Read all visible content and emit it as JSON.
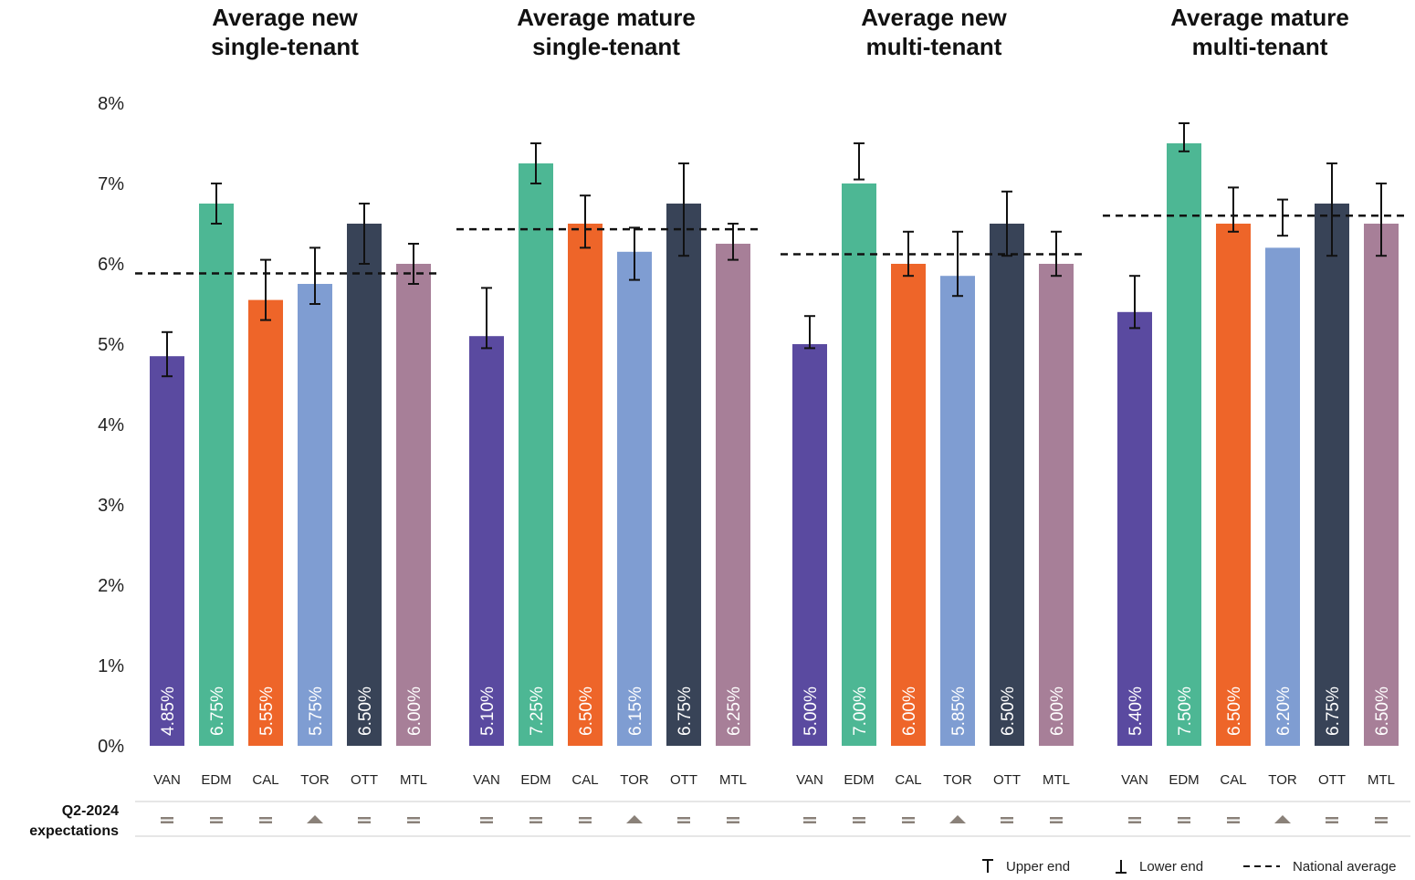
{
  "chart_data": {
    "type": "bar",
    "y_axis": {
      "ylim": [
        0,
        8
      ],
      "ticks": [
        0,
        1,
        2,
        3,
        4,
        5,
        6,
        7,
        8
      ],
      "tick_labels": [
        "0%",
        "1%",
        "2%",
        "3%",
        "4%",
        "5%",
        "6%",
        "7%",
        "8%"
      ]
    },
    "categories": [
      "VAN",
      "EDM",
      "CAL",
      "TOR",
      "OTT",
      "MTL"
    ],
    "category_colors": [
      "#5a4aa0",
      "#4db794",
      "#ee6529",
      "#7f9dd2",
      "#384357",
      "#a77f98"
    ],
    "legend_position": "bottom-right",
    "panels": [
      {
        "title": [
          "Average new",
          "single-tenant"
        ],
        "values": [
          4.85,
          6.75,
          5.55,
          5.75,
          6.5,
          6.0
        ],
        "value_labels": [
          "4.85%",
          "6.75%",
          "5.55%",
          "5.75%",
          "6.50%",
          "6.00%"
        ],
        "upper": [
          5.15,
          7.0,
          6.05,
          6.2,
          6.75,
          6.25
        ],
        "lower": [
          4.6,
          6.5,
          5.3,
          5.5,
          6.0,
          5.75
        ],
        "national_average": 5.88,
        "expectations": [
          "equal",
          "equal",
          "equal",
          "up",
          "equal",
          "equal"
        ]
      },
      {
        "title": [
          "Average mature",
          "single-tenant"
        ],
        "values": [
          5.1,
          7.25,
          6.5,
          6.15,
          6.75,
          6.25
        ],
        "value_labels": [
          "5.10%",
          "7.25%",
          "6.50%",
          "6.15%",
          "6.75%",
          "6.25%"
        ],
        "upper": [
          5.7,
          7.5,
          6.85,
          6.45,
          7.25,
          6.5
        ],
        "lower": [
          4.95,
          7.0,
          6.2,
          5.8,
          6.1,
          6.05
        ],
        "national_average": 6.43,
        "expectations": [
          "equal",
          "equal",
          "equal",
          "up",
          "equal",
          "equal"
        ]
      },
      {
        "title": [
          "Average new",
          "multi-tenant"
        ],
        "values": [
          5.0,
          7.0,
          6.0,
          5.85,
          6.5,
          6.0
        ],
        "value_labels": [
          "5.00%",
          "7.00%",
          "6.00%",
          "5.85%",
          "6.50%",
          "6.00%"
        ],
        "upper": [
          5.35,
          7.5,
          6.4,
          6.4,
          6.9,
          6.4
        ],
        "lower": [
          4.95,
          7.05,
          5.85,
          5.6,
          6.1,
          5.85
        ],
        "national_average": 6.12,
        "expectations": [
          "equal",
          "equal",
          "equal",
          "up",
          "equal",
          "equal"
        ]
      },
      {
        "title": [
          "Average mature",
          "multi-tenant"
        ],
        "values": [
          5.4,
          7.5,
          6.5,
          6.2,
          6.75,
          6.5
        ],
        "value_labels": [
          "5.40%",
          "7.50%",
          "6.50%",
          "6.20%",
          "6.75%",
          "6.50%"
        ],
        "upper": [
          5.85,
          7.75,
          6.95,
          6.8,
          7.25,
          7.0
        ],
        "lower": [
          5.2,
          7.4,
          6.4,
          6.35,
          6.1,
          6.1
        ],
        "national_average": 6.6,
        "expectations": [
          "equal",
          "equal",
          "equal",
          "up",
          "equal",
          "equal"
        ]
      }
    ],
    "expectations_label": [
      "Q2-2024",
      "expectations"
    ],
    "legend": [
      {
        "symbol": "upper-end-icon",
        "label": "Upper end"
      },
      {
        "symbol": "lower-end-icon",
        "label": "Lower end"
      },
      {
        "symbol": "dashed-line-icon",
        "label": "National average"
      }
    ],
    "colors": {
      "average_line": "#111111",
      "error_bar": "#111111",
      "expectation_marker": "#8a8179",
      "separator": "#cccccc"
    }
  }
}
